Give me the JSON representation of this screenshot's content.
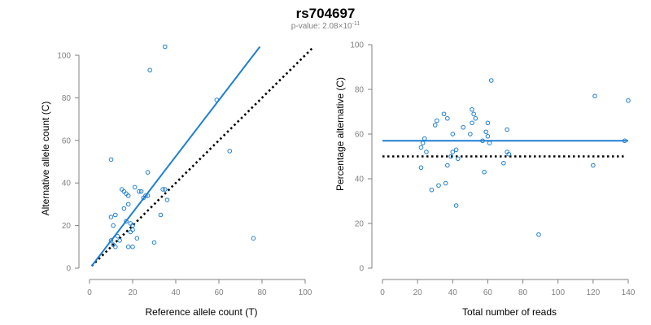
{
  "title": "rs704697",
  "subtitle": {
    "prefix": "p-value: 2.08×10",
    "exponent": "-11"
  },
  "colors": {
    "points": "#1f7fd0",
    "fit_line": "#1f7fd0",
    "reference_line": "#000000",
    "axis": "#808080"
  },
  "chart_data": [
    {
      "type": "scatter",
      "xlabel": "Reference allele count (T)",
      "ylabel": "Alternative allele count (C)",
      "xlim": [
        0,
        100
      ],
      "ylim": [
        0,
        100
      ],
      "xticks": [
        0,
        20,
        40,
        60,
        80,
        100
      ],
      "yticks": [
        0,
        20,
        40,
        60,
        80,
        100
      ],
      "grid": false,
      "points": [
        [
          10,
          51
        ],
        [
          28,
          93
        ],
        [
          35,
          104
        ],
        [
          59,
          79
        ],
        [
          65,
          55
        ],
        [
          76,
          14
        ],
        [
          30,
          12
        ],
        [
          27,
          45
        ],
        [
          10,
          13
        ],
        [
          11,
          11
        ],
        [
          12,
          10
        ],
        [
          10,
          24
        ],
        [
          11,
          20
        ],
        [
          12,
          25
        ],
        [
          15,
          37
        ],
        [
          16,
          36
        ],
        [
          17,
          35
        ],
        [
          18,
          34
        ],
        [
          16,
          28
        ],
        [
          18,
          30
        ],
        [
          17,
          22
        ],
        [
          19,
          21
        ],
        [
          20,
          20
        ],
        [
          19,
          17
        ],
        [
          20,
          18
        ],
        [
          22,
          14
        ],
        [
          21,
          38
        ],
        [
          23,
          36
        ],
        [
          24,
          36
        ],
        [
          25,
          33
        ],
        [
          26,
          34
        ],
        [
          27,
          34
        ],
        [
          33,
          25
        ],
        [
          34,
          37
        ],
        [
          35,
          37
        ],
        [
          36,
          32
        ],
        [
          18,
          10
        ],
        [
          20,
          10
        ],
        [
          13,
          15
        ],
        [
          14,
          13
        ]
      ],
      "fit_line": {
        "x": [
          1,
          79
        ],
        "y": [
          1,
          104
        ]
      },
      "reference_line": {
        "x": [
          1,
          104
        ],
        "y": [
          1,
          104
        ]
      }
    },
    {
      "type": "scatter",
      "xlabel": "Total number of reads",
      "ylabel": "Percentage alternative (C)",
      "xlim": [
        0,
        140
      ],
      "ylim": [
        0,
        100
      ],
      "xticks": [
        0,
        20,
        40,
        60,
        80,
        100,
        120,
        140
      ],
      "yticks": [
        0,
        20,
        40,
        60,
        80,
        100
      ],
      "grid": false,
      "points": [
        [
          62,
          84
        ],
        [
          121,
          77
        ],
        [
          140,
          75
        ],
        [
          51,
          71
        ],
        [
          52,
          69
        ],
        [
          53,
          67
        ],
        [
          51,
          65
        ],
        [
          60,
          65
        ],
        [
          35,
          69
        ],
        [
          37,
          67
        ],
        [
          30,
          64
        ],
        [
          31,
          66
        ],
        [
          46,
          63
        ],
        [
          71,
          62
        ],
        [
          40,
          60
        ],
        [
          50,
          60
        ],
        [
          59,
          61
        ],
        [
          60,
          59
        ],
        [
          61,
          56
        ],
        [
          24,
          58
        ],
        [
          23,
          56
        ],
        [
          22,
          54
        ],
        [
          25,
          52
        ],
        [
          39,
          50
        ],
        [
          40,
          52
        ],
        [
          42,
          53
        ],
        [
          43,
          49
        ],
        [
          57,
          57
        ],
        [
          71,
          52
        ],
        [
          72,
          51
        ],
        [
          22,
          45
        ],
        [
          37,
          46
        ],
        [
          58,
          43
        ],
        [
          69,
          47
        ],
        [
          32,
          37
        ],
        [
          36,
          38
        ],
        [
          28,
          35
        ],
        [
          42,
          28
        ],
        [
          89,
          15
        ],
        [
          120,
          46
        ],
        [
          138,
          57
        ]
      ],
      "fit_line": {
        "x": [
          0,
          140
        ],
        "y": [
          57,
          57
        ]
      },
      "reference_line": {
        "x": [
          0,
          138
        ],
        "y": [
          50,
          50
        ]
      }
    }
  ]
}
